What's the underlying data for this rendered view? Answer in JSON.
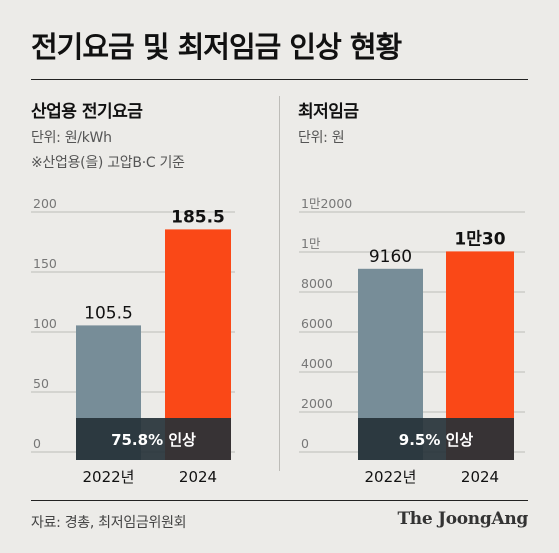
{
  "title": "전기요금 및 최저임금 인상 현황",
  "source": "자료: 경총, 최저임금위원회",
  "logo": "The JoongAng",
  "colors": {
    "old_bar": "#778d98",
    "new_bar": "#fa4817",
    "band": "#263238",
    "background": "#ecebe8"
  },
  "left": {
    "heading": "산업용 전기요금",
    "unit": "단위: 원/kWh",
    "note": "※산업용(을) 고압B·C 기준"
  },
  "right": {
    "heading": "최저임금",
    "unit": "단위: 원"
  },
  "chart_data": [
    {
      "type": "bar",
      "categories": [
        "2022년",
        "2024"
      ],
      "values": [
        105.5,
        185.5
      ],
      "value_labels": [
        "105.5",
        "185.5"
      ],
      "ylim": [
        0,
        200
      ],
      "yticks": [
        0,
        50,
        100,
        150,
        200
      ],
      "ytick_labels": [
        "0",
        "50",
        "100",
        "150",
        "200"
      ],
      "annotation": "75.8% 인상",
      "grid": true
    },
    {
      "type": "bar",
      "categories": [
        "2022년",
        "2024"
      ],
      "values": [
        9160,
        10030
      ],
      "value_labels": [
        "9160",
        "1만30"
      ],
      "ylim": [
        0,
        12000
      ],
      "yticks": [
        0,
        2000,
        4000,
        6000,
        8000,
        10000,
        12000
      ],
      "ytick_labels": [
        "0",
        "2000",
        "4000",
        "6000",
        "8000",
        "1만",
        "1만2000"
      ],
      "annotation": "9.5% 인상",
      "grid": true
    }
  ]
}
